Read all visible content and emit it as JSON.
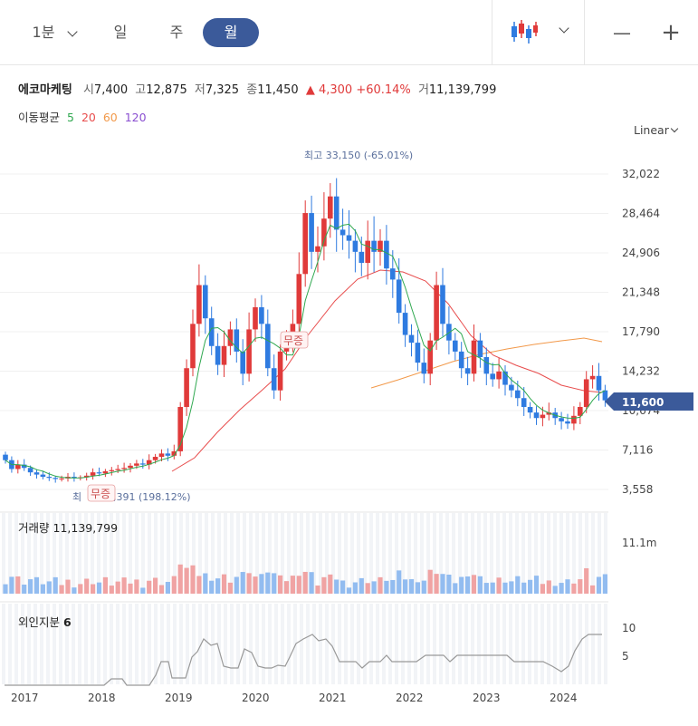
{
  "toolbar": {
    "interval_label": "1분",
    "tab_day": "일",
    "tab_week": "주",
    "tab_month": "월",
    "zoom_out": "—",
    "zoom_in": "+",
    "chart_type_icon": "candlestick-icon"
  },
  "stock": {
    "name": "에코마케팅",
    "open_label": "시",
    "open": "7,400",
    "high_label": "고",
    "high": "12,875",
    "low_label": "저",
    "low": "7,325",
    "close_label": "종",
    "close": "11,450",
    "change": "▲ 4,300",
    "change_pct": "+60.14%",
    "volume_label": "거",
    "volume": "11,139,799"
  },
  "ma": {
    "label": "이동평균",
    "periods": [
      "5",
      "20",
      "60",
      "120"
    ],
    "colors": [
      "#2fa84f",
      "#e84d4d",
      "#f2994a",
      "#8a4fd1"
    ]
  },
  "scale_mode": "Linear",
  "colors": {
    "up": "#e03a3a",
    "down": "#2f7be0",
    "accent": "#3b5a9a",
    "vol_up": "#f0a3a3",
    "vol_down": "#92bcf0"
  },
  "chart_data": {
    "type": "candlestick",
    "price_axis": {
      "ticks": [
        "32,022",
        "28,464",
        "24,906",
        "21,348",
        "17,790",
        "14,232",
        "10,674",
        "7,116",
        "3,558"
      ],
      "ylim": [
        1700,
        34500
      ]
    },
    "x_ticks": [
      "2017",
      "2018",
      "2019",
      "2020",
      "2021",
      "2022",
      "2023",
      "2024"
    ],
    "current_price": "11,600",
    "annotations": {
      "max": "최고 33,150 (-65.01%)",
      "min_prefix": "최",
      "min_suffix": ",391 (198.12%)",
      "event": "무증"
    },
    "volume": {
      "title": "거래량",
      "value": "11,139,799",
      "axis": "11.1m"
    },
    "foreign": {
      "title": "외인지분",
      "value": "6",
      "ticks": [
        "10",
        "5"
      ]
    },
    "closes": [
      6200,
      5400,
      5800,
      5500,
      5100,
      4900,
      4700,
      4600,
      4500,
      4550,
      4700,
      4600,
      4650,
      4800,
      5100,
      5000,
      5200,
      5300,
      5400,
      5500,
      5700,
      5900,
      5800,
      6200,
      6500,
      6800,
      6600,
      7000,
      11000,
      14500,
      18500,
      22000,
      19000,
      16500,
      14800,
      16500,
      18000,
      16000,
      14000,
      18000,
      20000,
      18500,
      14500,
      12500,
      16000,
      17000,
      18500,
      23000,
      28500,
      25000,
      25500,
      28000,
      30000,
      27000,
      26500,
      26000,
      25000,
      24000,
      26000,
      25000,
      26000,
      23500,
      22500,
      19500,
      17500,
      16800,
      15000,
      14000,
      17000,
      22000,
      18500,
      17000,
      16000,
      14500,
      14000,
      17000,
      15500,
      14000,
      13500,
      14200,
      13000,
      12500,
      11800,
      11000,
      10500,
      10000,
      10300,
      10500,
      10000,
      9700,
      9500,
      10200,
      11000,
      13500,
      13800,
      12500,
      11600
    ]
  }
}
